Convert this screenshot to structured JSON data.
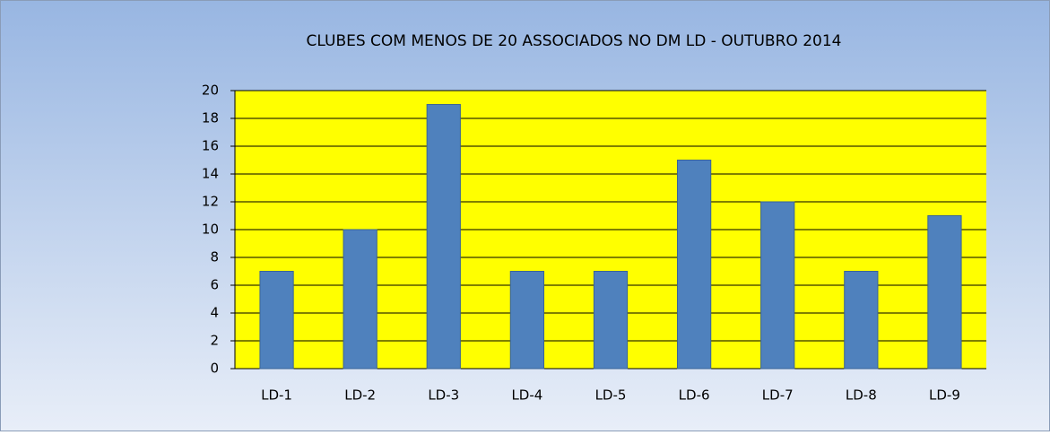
{
  "chart_data": {
    "type": "bar",
    "title": "CLUBES COM MENOS DE 20  ASSOCIADOS NO DM LD - OUTUBRO 2014",
    "categories": [
      "LD-1",
      "LD-2",
      "LD-3",
      "LD-4",
      "LD-5",
      "LD-6",
      "LD-7",
      "LD-8",
      "LD-9"
    ],
    "values": [
      7,
      10,
      19,
      7,
      7,
      15,
      12,
      7,
      11
    ],
    "color": "#4f81bd",
    "plot_background": "#ffff00",
    "ylim": [
      0,
      20
    ],
    "yticks": [
      0,
      2,
      4,
      6,
      8,
      10,
      12,
      14,
      16,
      18,
      20
    ],
    "grid": true
  }
}
